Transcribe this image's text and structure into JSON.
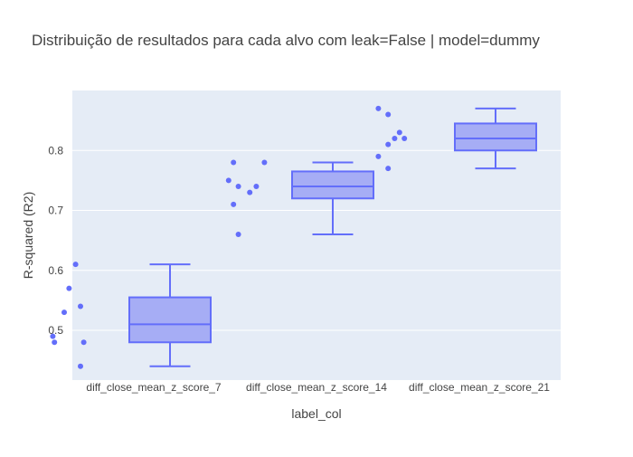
{
  "chart_data": {
    "type": "box",
    "title": "Distribuição de resultados para cada alvo com leak=False | model=dummy",
    "xlabel": "label_col",
    "ylabel": "R-squared (R2)",
    "ylim": [
      0.417,
      0.9
    ],
    "yticks": [
      0.5,
      0.6,
      0.7,
      0.8
    ],
    "grid": true,
    "legend": "none",
    "colors": {
      "plot_bg": "#E5ECF6",
      "grid": "#FFFFFF",
      "box_line": "#636EFA",
      "box_fill": "#A6ADF5",
      "point": "#636EFA",
      "text": "#444444"
    },
    "categories": [
      "diff_close_mean_z_score_7",
      "diff_close_mean_z_score_14",
      "diff_close_mean_z_score_21"
    ],
    "boxes": [
      {
        "category": "diff_close_mean_z_score_7",
        "min": 0.44,
        "q1": 0.48,
        "median": 0.51,
        "q3": 0.555,
        "max": 0.61,
        "points": [
          {
            "x": -0.48,
            "y": 0.61
          },
          {
            "x": -0.52,
            "y": 0.57
          },
          {
            "x": -0.45,
            "y": 0.54
          },
          {
            "x": -0.55,
            "y": 0.53
          },
          {
            "x": -0.62,
            "y": 0.49
          },
          {
            "x": -0.61,
            "y": 0.48
          },
          {
            "x": -0.43,
            "y": 0.48
          },
          {
            "x": -0.45,
            "y": 0.44
          }
        ]
      },
      {
        "category": "diff_close_mean_z_score_14",
        "min": 0.66,
        "q1": 0.72,
        "median": 0.74,
        "q3": 0.765,
        "max": 0.78,
        "points": [
          {
            "x": -0.51,
            "y": 0.78
          },
          {
            "x": -0.32,
            "y": 0.78
          },
          {
            "x": -0.54,
            "y": 0.75
          },
          {
            "x": -0.48,
            "y": 0.74
          },
          {
            "x": -0.37,
            "y": 0.74
          },
          {
            "x": -0.41,
            "y": 0.73
          },
          {
            "x": -0.51,
            "y": 0.71
          },
          {
            "x": -0.48,
            "y": 0.66
          }
        ]
      },
      {
        "category": "diff_close_mean_z_score_21",
        "min": 0.77,
        "q1": 0.8,
        "median": 0.82,
        "q3": 0.845,
        "max": 0.87,
        "points": [
          {
            "x": -0.62,
            "y": 0.87
          },
          {
            "x": -0.56,
            "y": 0.86
          },
          {
            "x": -0.49,
            "y": 0.83
          },
          {
            "x": -0.52,
            "y": 0.82
          },
          {
            "x": -0.46,
            "y": 0.82
          },
          {
            "x": -0.56,
            "y": 0.81
          },
          {
            "x": -0.62,
            "y": 0.79
          },
          {
            "x": -0.56,
            "y": 0.77
          }
        ]
      }
    ]
  }
}
